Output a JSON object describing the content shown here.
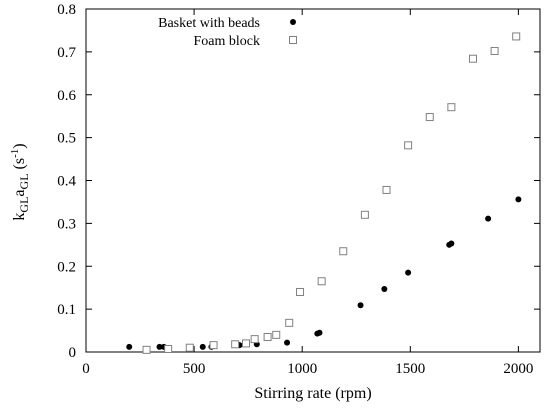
{
  "chart_data": {
    "type": "scatter",
    "title": "",
    "xlabel": "Stirring rate (rpm)",
    "ylabel": {
      "base1": "k",
      "sub1": "GL",
      "base2": "a",
      "sub2": "GL",
      "unit_open": " (s",
      "unit_sup": "-1",
      "unit_close": ")"
    },
    "xlim": [
      0,
      2100
    ],
    "ylim": [
      0,
      0.8
    ],
    "xticks": [
      0,
      500,
      1000,
      1500,
      2000
    ],
    "xtick_labels": [
      "0",
      "500",
      "1000",
      "1500",
      "2000"
    ],
    "yticks": [
      0,
      0.1,
      0.2,
      0.3,
      0.4,
      0.5,
      0.6,
      0.7,
      0.8
    ],
    "ytick_labels": [
      "0",
      "0.1",
      "0.2",
      "0.3",
      "0.4",
      "0.5",
      "0.6",
      "0.7",
      "0.8"
    ],
    "grid": false,
    "legend_position": "top-center",
    "series": [
      {
        "name": "Basket with beads",
        "marker": "filled-circle",
        "color": "#000000",
        "x": [
          200,
          340,
          360,
          540,
          580,
          710,
          790,
          930,
          1070,
          1080,
          1270,
          1380,
          1490,
          1680,
          1690,
          1860,
          2000
        ],
        "y": [
          0.012,
          0.012,
          0.012,
          0.012,
          0.012,
          0.016,
          0.018,
          0.022,
          0.043,
          0.045,
          0.109,
          0.147,
          0.185,
          0.25,
          0.253,
          0.311,
          0.356
        ]
      },
      {
        "name": "Foam block",
        "marker": "open-square",
        "color": "#808080",
        "x": [
          280,
          380,
          480,
          590,
          690,
          740,
          780,
          840,
          880,
          940,
          990,
          1090,
          1190,
          1290,
          1390,
          1490,
          1590,
          1690,
          1790,
          1890,
          1990
        ],
        "y": [
          0.005,
          0.007,
          0.01,
          0.016,
          0.018,
          0.02,
          0.03,
          0.035,
          0.04,
          0.068,
          0.14,
          0.165,
          0.235,
          0.32,
          0.378,
          0.482,
          0.548,
          0.571,
          0.684,
          0.702,
          0.736
        ]
      }
    ]
  }
}
